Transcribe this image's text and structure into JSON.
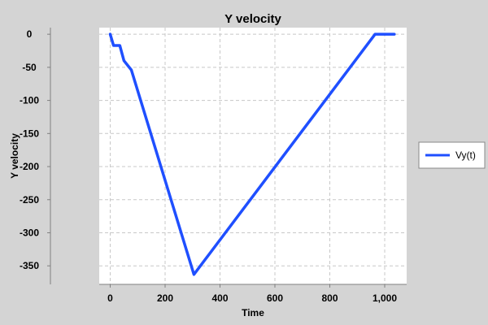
{
  "chart_data": {
    "type": "line",
    "title": "Y velocity",
    "xlabel": "Time",
    "ylabel": "Y velocity",
    "xlim": [
      -40,
      1080
    ],
    "ylim": [
      -378,
      10
    ],
    "xticks": [
      0,
      200,
      400,
      600,
      800,
      1000
    ],
    "xtick_labels": [
      "0",
      "200",
      "400",
      "600",
      "800",
      "1,000"
    ],
    "yticks": [
      0,
      -50,
      -100,
      -150,
      -200,
      -250,
      -300,
      -350
    ],
    "ytick_labels": [
      "0",
      "-50",
      "-100",
      "-150",
      "-200",
      "-250",
      "-300",
      "-350"
    ],
    "grid": true,
    "legend_position": "right",
    "colors": {
      "plot_background": "#ffffff",
      "page_background": "#d4d4d4",
      "grid": "#c8c8c8"
    },
    "series": [
      {
        "name": "Vy(t)",
        "color": "#1f4fff",
        "points": [
          [
            0,
            0
          ],
          [
            12,
            -17
          ],
          [
            35,
            -17
          ],
          [
            50,
            -40
          ],
          [
            77,
            -54
          ],
          [
            305,
            -363
          ],
          [
            965,
            0
          ],
          [
            1035,
            0
          ]
        ]
      }
    ]
  }
}
